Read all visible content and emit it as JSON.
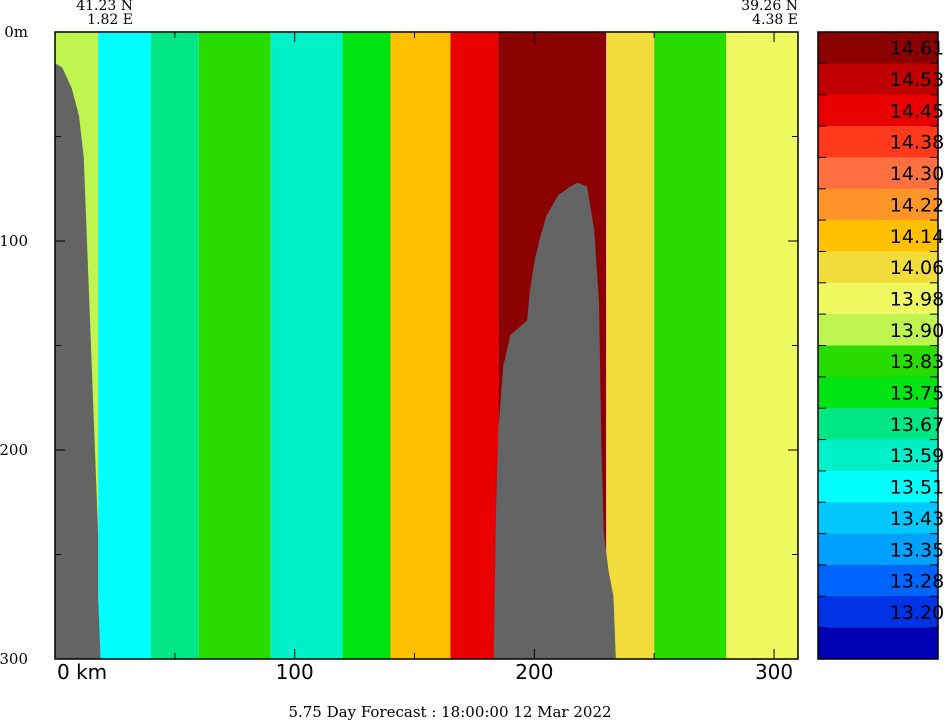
{
  "chart_data": {
    "type": "heatmap",
    "title": "5.75 Day Forecast : 18:00:00  12 Mar 2022",
    "corner_left": {
      "lat": "41.23 N",
      "lon": "1.82 E"
    },
    "corner_right": {
      "lat": "39.26 N",
      "lon": "4.38 E"
    },
    "x_axis": {
      "unit_label": "km",
      "range": [
        0,
        310
      ],
      "ticks": [
        "0",
        "100",
        "200",
        "300"
      ],
      "tick_values": [
        0,
        100,
        200,
        300
      ]
    },
    "y_axis": {
      "unit_label": "m",
      "range": [
        0,
        300
      ],
      "inverted": true,
      "ticks": [
        "0",
        "100",
        "200",
        "300"
      ],
      "tick_values": [
        0,
        100,
        200,
        300
      ]
    },
    "colorbar": {
      "labels": [
        "14.61",
        "14.53",
        "14.45",
        "14.38",
        "14.30",
        "14.22",
        "14.14",
        "14.06",
        "13.98",
        "13.90",
        "13.83",
        "13.75",
        "13.67",
        "13.59",
        "13.51",
        "13.43",
        "13.35",
        "13.28",
        "13.20"
      ],
      "colors": [
        "#8b0000",
        "#c00000",
        "#e80000",
        "#ff3a1a",
        "#ff7040",
        "#ff9428",
        "#ffc000",
        "#f2dc3c",
        "#eefa60",
        "#bff550",
        "#28dc00",
        "#00e414",
        "#00e682",
        "#00f0c8",
        "#00ffff",
        "#00c8ff",
        "#00a0ff",
        "#0064ff",
        "#0032e6",
        "#0000b4"
      ]
    },
    "fields": [
      {
        "x_range": [
          0,
          18
        ],
        "level": "13.90"
      },
      {
        "x_range": [
          18,
          40
        ],
        "level": "13.51"
      },
      {
        "x_range": [
          40,
          60
        ],
        "level": "13.67"
      },
      {
        "x_range": [
          60,
          90
        ],
        "level": "13.83"
      },
      {
        "x_range": [
          90,
          120
        ],
        "level": "13.59"
      },
      {
        "x_range": [
          120,
          140
        ],
        "level": "13.75"
      },
      {
        "x_range": [
          140,
          165
        ],
        "level": "14.14"
      },
      {
        "x_range": [
          165,
          185
        ],
        "level": "14.45"
      },
      {
        "x_range": [
          185,
          230
        ],
        "level": "14.61"
      },
      {
        "x_range": [
          230,
          250
        ],
        "level": "14.06"
      },
      {
        "x_range": [
          250,
          280
        ],
        "level": "13.83"
      },
      {
        "x_range": [
          280,
          310
        ],
        "level": "13.98"
      }
    ],
    "bathymetry": {
      "color": "#646464",
      "left_slope": [
        [
          0,
          15
        ],
        [
          3,
          17
        ],
        [
          7,
          27
        ],
        [
          10,
          40
        ],
        [
          12,
          60
        ],
        [
          13,
          90
        ],
        [
          14,
          120
        ],
        [
          15,
          150
        ],
        [
          16,
          180
        ],
        [
          17,
          210
        ],
        [
          18,
          240
        ],
        [
          18,
          270
        ],
        [
          19,
          300
        ]
      ],
      "seamount": [
        [
          183,
          300
        ],
        [
          184,
          230
        ],
        [
          185,
          190
        ],
        [
          187,
          160
        ],
        [
          190,
          145
        ],
        [
          195,
          140
        ],
        [
          197,
          138
        ],
        [
          198,
          125
        ],
        [
          200,
          110
        ],
        [
          202,
          100
        ],
        [
          205,
          88
        ],
        [
          210,
          78
        ],
        [
          215,
          74
        ],
        [
          218,
          72
        ],
        [
          222,
          74
        ],
        [
          225,
          95
        ],
        [
          227,
          130
        ],
        [
          228,
          200
        ],
        [
          229,
          240
        ],
        [
          231,
          258
        ],
        [
          233,
          270
        ],
        [
          234,
          300
        ]
      ]
    }
  }
}
